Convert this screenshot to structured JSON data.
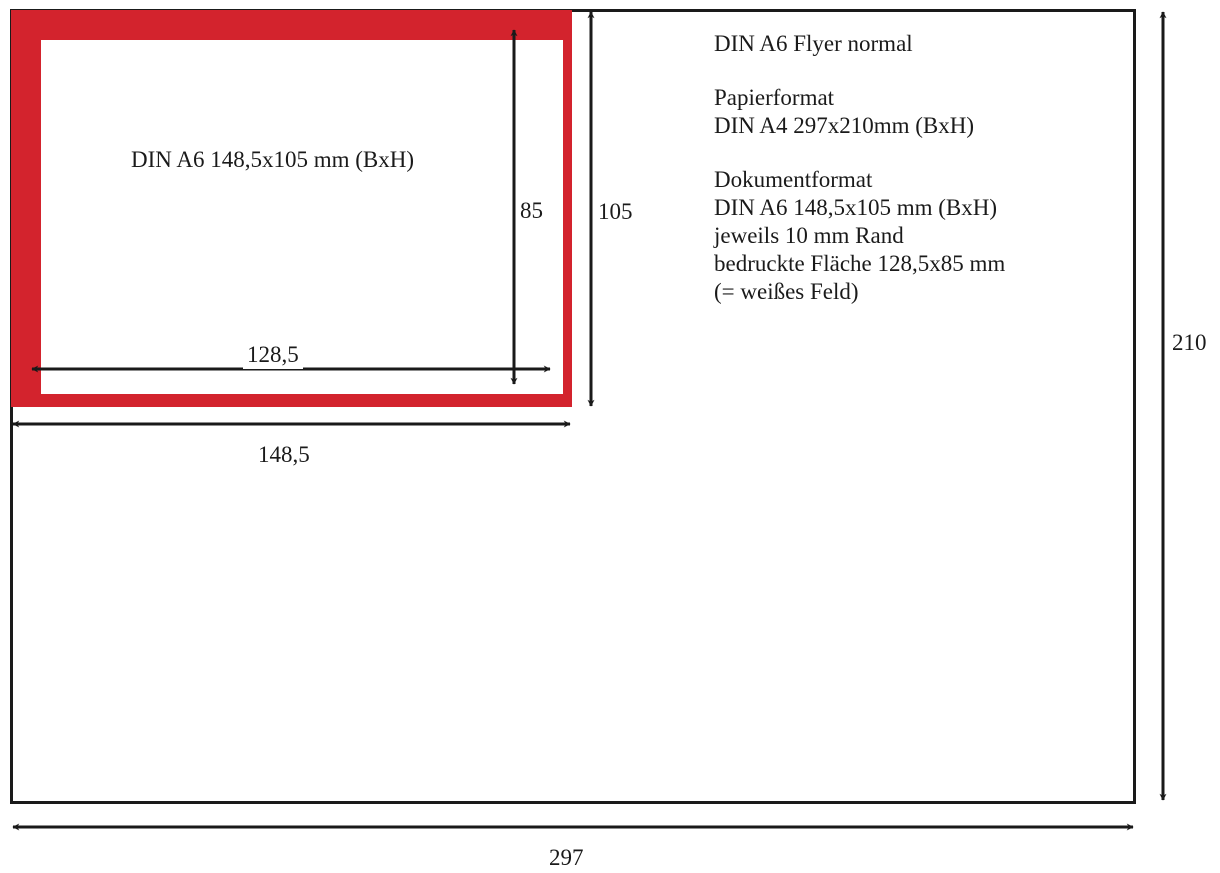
{
  "flyer_label": "DIN A6 148,5x105 mm (BxH)",
  "dimensions": {
    "inner_width": "128,5",
    "inner_height": "85",
    "flyer_width": "148,5",
    "flyer_height": "105",
    "paper_width": "297",
    "paper_height": "210"
  },
  "info": {
    "title": "DIN A6 Flyer normal",
    "paper_heading": "Papierformat",
    "paper_value": "DIN A4 297x210mm (BxH)",
    "document_heading": "Dokumentformat",
    "document_value": "DIN A6 148,5x105 mm (BxH)",
    "margin_note": "jeweils 10 mm Rand",
    "print_area": "bedruckte Fläche 128,5x85 mm",
    "white_field_note": "(= weißes Feld)"
  },
  "colors": {
    "bleed_frame": "#d3232d",
    "lines": "#1a1a1a",
    "paper": "#ffffff"
  }
}
